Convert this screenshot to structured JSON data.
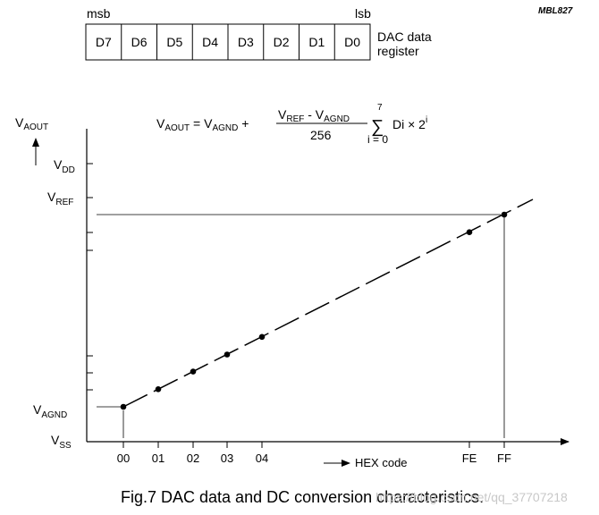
{
  "figure_id": "MBL827",
  "register": {
    "msb_label": "msb",
    "lsb_label": "lsb",
    "bits": [
      "D7",
      "D6",
      "D5",
      "D4",
      "D3",
      "D2",
      "D1",
      "D0"
    ],
    "label_line1": "DAC data",
    "label_line2": "register"
  },
  "y_axis": {
    "title_main": "V",
    "title_sub": "AOUT",
    "labels": [
      {
        "main": "V",
        "sub": "DD"
      },
      {
        "main": "V",
        "sub": "REF"
      },
      {
        "main": "V",
        "sub": "AGND"
      },
      {
        "main": "V",
        "sub": "SS"
      }
    ]
  },
  "x_axis": {
    "tick_labels": [
      "00",
      "01",
      "02",
      "03",
      "04",
      "FE",
      "FF"
    ],
    "arrow_glyph": "→",
    "label": "HEX code"
  },
  "formula": {
    "lhs_main": "V",
    "lhs_sub": "AOUT",
    "eq": " = ",
    "agnd_main": "V",
    "agnd_sub": "AGND",
    "plus": " +",
    "num_ref_main": "V",
    "num_ref_sub": "REF",
    "num_minus": " - ",
    "num_agnd_main": "V",
    "num_agnd_sub": "AGND",
    "denominator": "256",
    "sum_top": "7",
    "sum_symbol": "∑",
    "sum_bottom": "i = 0",
    "term": "Di × 2",
    "term_sup": "i"
  },
  "caption": "Fig.7  DAC data and DC conversion characteristics.",
  "watermark": "https://blog.csdn.net/qq_37707218",
  "chart_data": {
    "type": "line",
    "x_categories": [
      "00",
      "01",
      "02",
      "03",
      "04",
      "FE",
      "FF"
    ],
    "x_codes": [
      0,
      1,
      2,
      3,
      4,
      254,
      255
    ],
    "y_levels": [
      "VSS",
      "VAGND",
      "VREF",
      "VDD"
    ],
    "series": [
      {
        "marker_codes": [
          "00",
          "01",
          "02",
          "03",
          "04",
          "FE",
          "FF"
        ]
      }
    ],
    "line_style": "dashed",
    "note": ""
  }
}
